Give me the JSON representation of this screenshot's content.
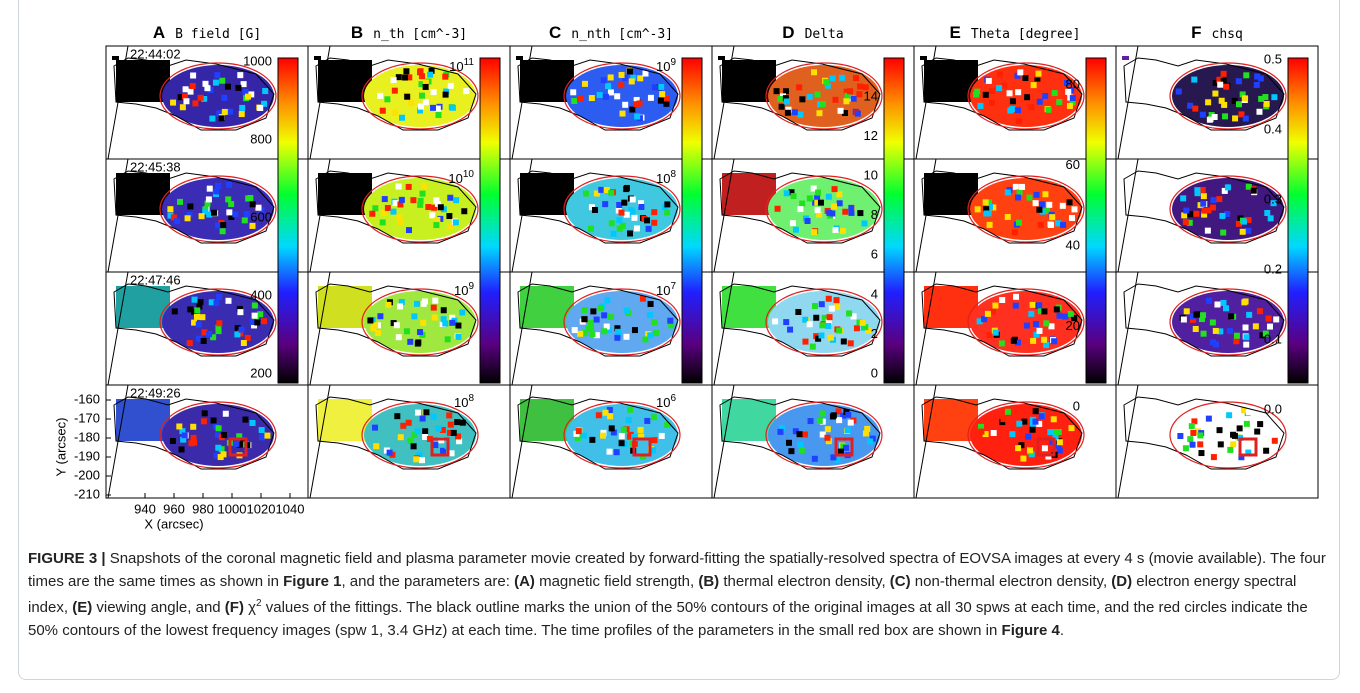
{
  "figure": {
    "columns": [
      {
        "letter": "A",
        "title": "B field [G]",
        "colorbar_ticks": [
          1000,
          800,
          600,
          400,
          200
        ]
      },
      {
        "letter": "B",
        "title": "n_th [cm^-3]",
        "colorbar_ticks": [
          {
            "base": "10",
            "exp": "11"
          },
          {
            "base": "10",
            "exp": "10"
          },
          {
            "base": "10",
            "exp": "9"
          },
          {
            "base": "10",
            "exp": "8"
          }
        ]
      },
      {
        "letter": "C",
        "title": "n_nth [cm^-3]",
        "colorbar_ticks": [
          {
            "base": "10",
            "exp": "9"
          },
          {
            "base": "10",
            "exp": "8"
          },
          {
            "base": "10",
            "exp": "7"
          },
          {
            "base": "10",
            "exp": "6"
          }
        ]
      },
      {
        "letter": "D",
        "title": "Delta",
        "colorbar_ticks": [
          14,
          12,
          10,
          8,
          6,
          4,
          2,
          0
        ]
      },
      {
        "letter": "E",
        "title": "Theta [degree]",
        "colorbar_ticks": [
          80,
          60,
          40,
          20,
          0
        ]
      },
      {
        "letter": "F",
        "title": "chsq",
        "colorbar_ticks": [
          0.5,
          0.4,
          0.3,
          0.2,
          0.1,
          "0.0"
        ]
      }
    ],
    "times": [
      "22:44:02",
      "22:45:38",
      "22:47:46",
      "22:49:26"
    ],
    "y_axis": {
      "label": "Y (arcsec)",
      "ticks": [
        -160,
        -170,
        -180,
        -190,
        -200,
        -210
      ]
    },
    "x_axis": {
      "label": "X (arcsec)",
      "ticks": [
        940,
        960,
        980,
        1000,
        1020,
        1040
      ]
    }
  },
  "caption": {
    "label": "FIGURE 3 |",
    "segments": [
      {
        "t": " Snapshots of the coronal magnetic field and plasma parameter movie created by forward-fitting the spatially-resolved spectra of EOVSA images at every 4 s (movie available). The four times are the same times as shown in "
      },
      {
        "t": "Figure 1",
        "b": true
      },
      {
        "t": ", and the parameters are: "
      },
      {
        "t": "(A)",
        "b": true
      },
      {
        "t": " magnetic field strength, "
      },
      {
        "t": "(B)",
        "b": true
      },
      {
        "t": " thermal electron density, "
      },
      {
        "t": "(C)",
        "b": true
      },
      {
        "t": " non-thermal electron density, "
      },
      {
        "t": "(D)",
        "b": true
      },
      {
        "t": " electron energy spectral index, "
      },
      {
        "t": "(E)",
        "b": true
      },
      {
        "t": " viewing angle, and "
      },
      {
        "t": "(F)",
        "b": true
      },
      {
        "t": " χ"
      },
      {
        "t": "2",
        "sup": true
      },
      {
        "t": " values of the fittings. The black outline marks the union of the 50% contours of the original images at all 30 spws at each time, and the red circles indicate the 50% contours of the lowest frequency images (spw 1, 3.4 GHz) at each time. The time profiles of the parameters in the small red box are shown in "
      },
      {
        "t": "Figure 4",
        "b": true
      },
      {
        "t": "."
      }
    ]
  }
}
